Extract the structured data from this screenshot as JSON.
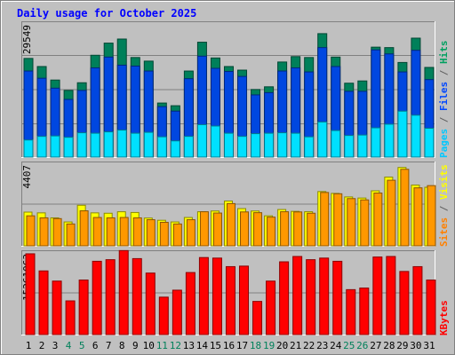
{
  "chart_data": {
    "type": "bar",
    "title": "Daily usage for October 2025",
    "categories": [
      "1",
      "2",
      "3",
      "4",
      "5",
      "6",
      "7",
      "8",
      "9",
      "10",
      "11",
      "12",
      "13",
      "14",
      "15",
      "16",
      "17",
      "18",
      "19",
      "20",
      "21",
      "22",
      "23",
      "24",
      "25",
      "26",
      "27",
      "28",
      "29",
      "30",
      "31"
    ],
    "weekend_days": [
      "4",
      "5",
      "11",
      "12",
      "18",
      "19",
      "25",
      "26"
    ],
    "panels": [
      {
        "name": "top",
        "ymax_label": "29549",
        "ymax": 29549,
        "y_axis_label": [
          {
            "text": "Pages",
            "color": "#00c8ff"
          },
          {
            "text": " / ",
            "color": "#606060"
          },
          {
            "text": "Files",
            "color": "#0047ff"
          },
          {
            "text": " / ",
            "color": "#606060"
          },
          {
            "text": "Hits",
            "color": "#00a060"
          }
        ],
        "series": [
          {
            "name": "Hits",
            "color": "#00805a",
            "values": [
              21900,
              20100,
              17100,
              14800,
              16500,
              22600,
              25300,
              26200,
              22100,
              21300,
              12000,
              11400,
              19100,
              25500,
              22000,
              20100,
              19300,
              15000,
              15600,
              21100,
              22300,
              22100,
              27400,
              22200,
              16400,
              16900,
              24400,
              24300,
              21000,
              26400,
              19900
            ]
          },
          {
            "name": "Files",
            "color": "#0047e0",
            "values": [
              19100,
              17500,
              15300,
              12800,
              14800,
              19800,
              22200,
              20400,
              20200,
              19100,
              11200,
              10200,
              17400,
              22400,
              19700,
              19000,
              17900,
              13800,
              14300,
              19100,
              19800,
              18900,
              24300,
              20100,
              14600,
              14600,
              23800,
              22900,
              18900,
              23700,
              17200
            ]
          },
          {
            "name": "Pages",
            "color": "#00e0ff",
            "values": [
              3800,
              4600,
              4700,
              4400,
              5400,
              5300,
              5600,
              6000,
              5300,
              5500,
              4500,
              3600,
              4600,
              7200,
              6900,
              5300,
              4600,
              5200,
              5300,
              5400,
              5300,
              4500,
              7800,
              5900,
              4800,
              4900,
              6500,
              7300,
              10200,
              9300,
              6400
            ]
          }
        ]
      },
      {
        "name": "middle",
        "ymax_label": "4407",
        "ymax": 4407,
        "y_axis_label": [
          {
            "text": "Sites",
            "color": "#ff8000"
          },
          {
            "text": " / ",
            "color": "#606060"
          },
          {
            "text": "Visits",
            "color": "#ffff00"
          }
        ],
        "series": [
          {
            "name": "Visits",
            "color": "#ffff00",
            "values": [
              1820,
              1780,
              1510,
              1290,
              2190,
              1780,
              1760,
              1840,
              1800,
              1500,
              1380,
              1290,
              1530,
              1840,
              1880,
              2420,
              2010,
              1880,
              1620,
              1960,
              1860,
              1840,
              2930,
              2830,
              2640,
              2580,
              2970,
              3710,
              4230,
              3280,
              3160
            ]
          },
          {
            "name": "Sites",
            "color": "#ff9800",
            "values": [
              1620,
              1510,
              1470,
              1180,
              1890,
              1530,
              1510,
              1530,
              1510,
              1410,
              1270,
              1180,
              1410,
              1840,
              1770,
              2280,
              1830,
              1790,
              1550,
              1840,
              1830,
              1760,
              2880,
              2810,
              2550,
              2480,
              2850,
              3540,
              4130,
              3130,
              3250
            ]
          }
        ]
      },
      {
        "name": "bottom",
        "ymax_label": "15261063",
        "ymax": 15261063,
        "y_axis_label": [
          {
            "text": "KBytes",
            "color": "#ff0000"
          }
        ],
        "series": [
          {
            "name": "KBytes",
            "color": "#ff0000",
            "values": [
              15100000,
              11900000,
              10000000,
              6300000,
              10200000,
              13700000,
              14000000,
              15700000,
              14200000,
              11500000,
              7000000,
              8300000,
              11600000,
              14400000,
              14300000,
              12700000,
              12800000,
              6200000,
              10000000,
              13600000,
              14600000,
              14000000,
              14300000,
              13700000,
              8400000,
              8700000,
              14500000,
              14600000,
              11800000,
              12700000,
              10200000
            ]
          }
        ]
      }
    ],
    "grid": true
  }
}
